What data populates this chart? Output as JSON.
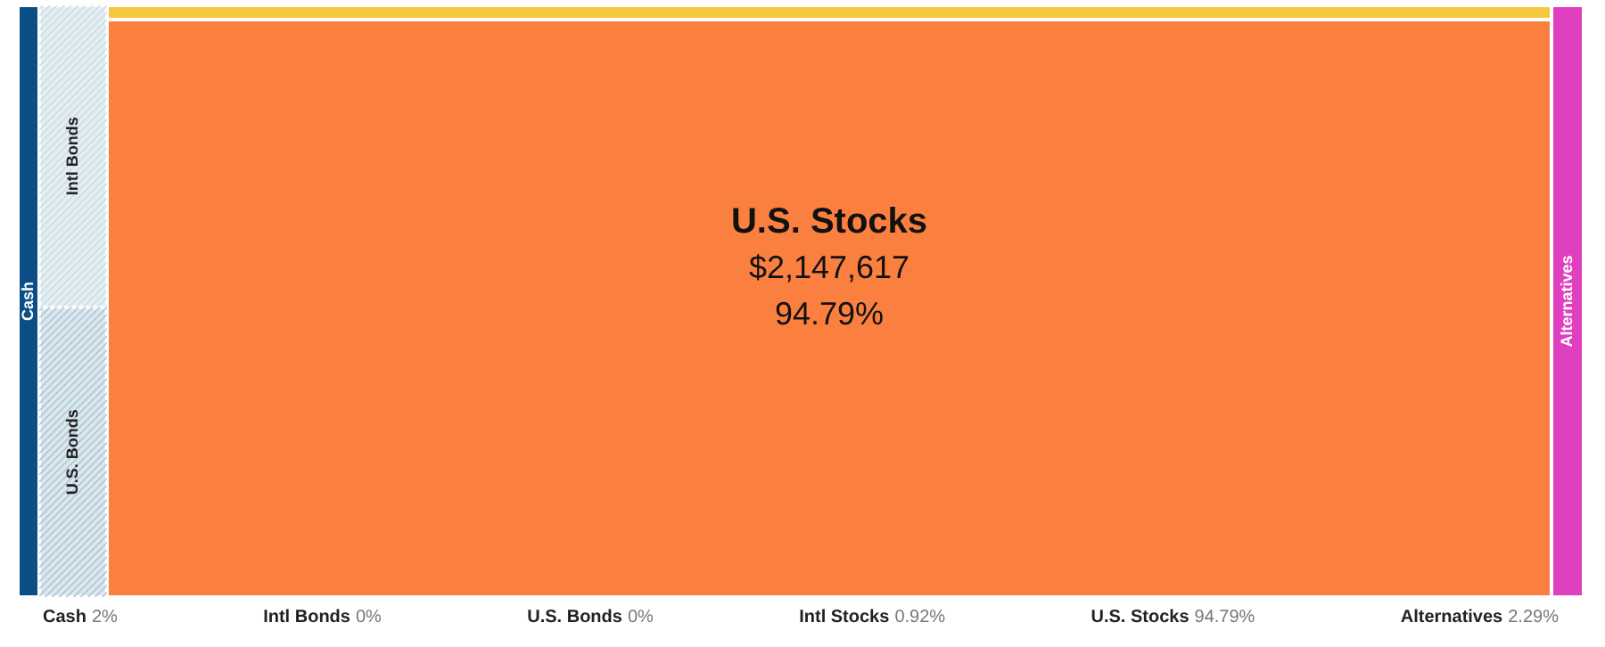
{
  "chart_data": {
    "type": "other",
    "categories": [
      "Cash",
      "Intl Bonds",
      "U.S. Bonds",
      "Intl Stocks",
      "U.S. Stocks",
      "Alternatives"
    ],
    "values": [
      2,
      0,
      0,
      0.92,
      94.79,
      2.29
    ],
    "value_labels": [
      "2%",
      "0%",
      "0%",
      "0.92%",
      "94.79%",
      "2.29%"
    ],
    "colors": [
      "#0b4f86",
      "#e3edf2",
      "#dbe7ee",
      "#f5c842",
      "#fb8040",
      "#e040c0"
    ],
    "annotations": [
      {
        "text": "$2,147,617",
        "x": "U.S. Stocks"
      }
    ]
  }
}
